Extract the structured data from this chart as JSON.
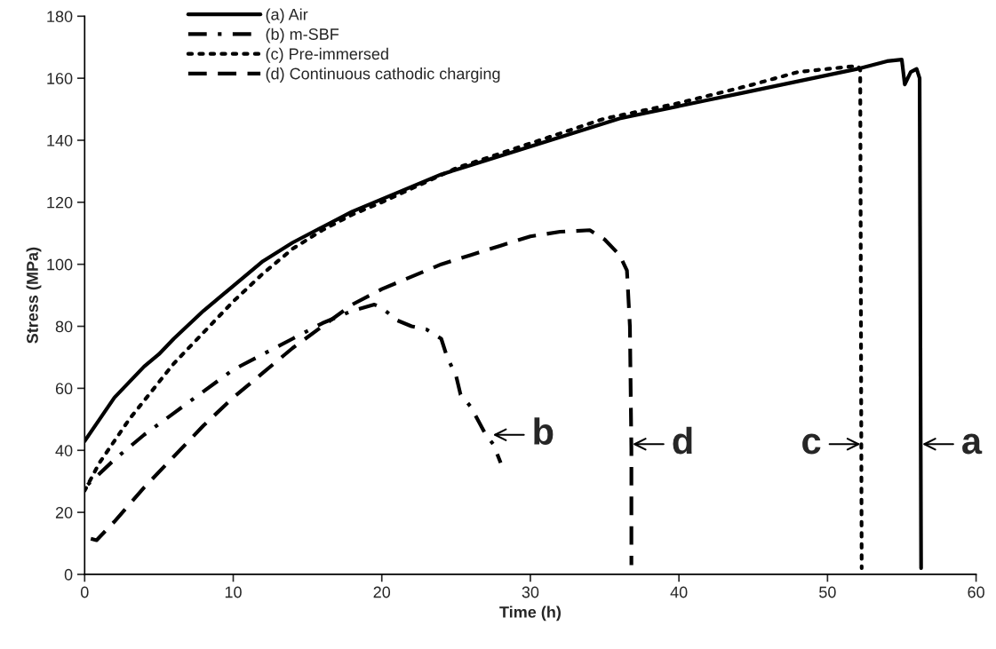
{
  "chart_data": {
    "type": "line",
    "xlabel": "Time (h)",
    "ylabel": "Stress (MPa)",
    "xlim": [
      0,
      60
    ],
    "xticks": [
      0,
      10,
      20,
      30,
      40,
      50,
      60
    ],
    "ylim": [
      0,
      180
    ],
    "yticks": [
      0,
      20,
      40,
      60,
      80,
      100,
      120,
      140,
      160,
      180
    ],
    "grid": false,
    "legend": "top left",
    "marker": "none",
    "series": [
      {
        "name": "(a) Air",
        "color": "#000000",
        "line_style": "solid",
        "x": [
          0,
          1,
          2,
          3,
          4,
          5,
          6,
          8,
          10,
          12,
          14,
          16,
          18,
          20,
          22,
          24,
          26,
          28,
          30,
          32,
          34,
          36,
          38,
          40,
          42,
          44,
          46,
          48,
          50,
          52,
          54,
          55,
          55.2,
          55.6,
          56,
          56.2,
          56.3
        ],
        "values": [
          43,
          50,
          57,
          62,
          67,
          71,
          76,
          85,
          93,
          101,
          107,
          112,
          117,
          121,
          125,
          129,
          132,
          135,
          138,
          141,
          144,
          147,
          149,
          151,
          153,
          155,
          157,
          159,
          161,
          163,
          165.5,
          166,
          158,
          162,
          163,
          160,
          2
        ]
      },
      {
        "name": "(b) m-SBF",
        "color": "#000000",
        "line_style": "dashdot",
        "x": [
          0,
          2,
          4,
          6,
          8,
          10,
          12,
          14,
          16,
          18,
          19.5,
          20,
          21,
          22,
          23,
          24,
          24.4,
          25,
          25.3,
          26,
          27,
          27.5,
          28
        ],
        "values": [
          28,
          37,
          45,
          52,
          59,
          66,
          71,
          76,
          81,
          85,
          87,
          86,
          82,
          80,
          79,
          76,
          70,
          64,
          58,
          54,
          45,
          42,
          36
        ]
      },
      {
        "name": "(c) Pre-immersed",
        "color": "#000000",
        "line_style": "dotted",
        "x": [
          0,
          1,
          2,
          3,
          4,
          5,
          6,
          8,
          10,
          12,
          14,
          16,
          18,
          20,
          25,
          30,
          35,
          40,
          45,
          48,
          50,
          52,
          52.2,
          52.3
        ],
        "values": [
          27,
          36,
          43,
          50,
          56,
          62,
          68,
          78,
          88,
          97,
          105,
          111,
          116,
          120,
          131,
          139,
          147,
          152,
          158,
          162,
          163,
          164,
          163,
          2
        ]
      },
      {
        "name": "(d) Continuous cathodic charging",
        "color": "#000000",
        "line_style": "dashed",
        "x": [
          0,
          0.8,
          2,
          4,
          6,
          8,
          10,
          12,
          14,
          16,
          18,
          20,
          22,
          24,
          26,
          28,
          30,
          32,
          34,
          35,
          36,
          36.5,
          36.7,
          36.8,
          36.8
        ],
        "values": [
          12,
          11,
          17,
          28,
          38,
          48,
          57,
          65,
          73,
          80,
          87,
          92,
          96,
          100,
          103,
          106,
          109,
          110.5,
          111,
          108,
          103,
          98,
          80,
          40,
          3
        ]
      }
    ],
    "annotations": [
      {
        "text": "b",
        "x": 27.4,
        "y": 45
      },
      {
        "text": "d",
        "x": 36.8,
        "y": 42
      },
      {
        "text": "c",
        "x": 52.3,
        "y": 42
      },
      {
        "text": "a",
        "x": 56.3,
        "y": 42
      }
    ]
  }
}
